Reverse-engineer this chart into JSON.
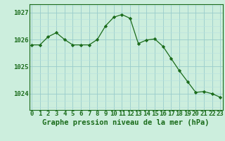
{
  "hours": [
    0,
    1,
    2,
    3,
    4,
    5,
    6,
    7,
    8,
    9,
    10,
    11,
    12,
    13,
    14,
    15,
    16,
    17,
    18,
    19,
    20,
    21,
    22,
    23
  ],
  "pressure": [
    1025.8,
    1025.8,
    1026.1,
    1026.25,
    1026.0,
    1025.8,
    1025.8,
    1025.8,
    1026.0,
    1026.5,
    1026.82,
    1026.92,
    1026.78,
    1025.85,
    1025.98,
    1026.02,
    1025.75,
    1025.3,
    1024.85,
    1024.45,
    1024.05,
    1024.08,
    1024.0,
    1023.87
  ],
  "line_color": "#1a6b1a",
  "bg_color": "#cceedd",
  "grid_color_major": "#99cccc",
  "grid_color_minor": "#b8e0e0",
  "ylabel_ticks": [
    1024,
    1025,
    1026,
    1027
  ],
  "xlabel": "Graphe pression niveau de la mer (hPa)",
  "xlabel_fontsize": 7.5,
  "tick_fontsize": 6.5,
  "ylim": [
    1023.4,
    1027.3
  ],
  "xlim": [
    -0.3,
    23.3
  ]
}
